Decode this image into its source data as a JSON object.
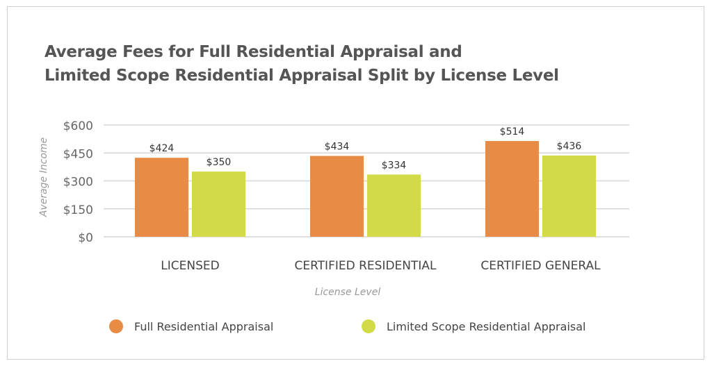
{
  "chart_data": {
    "type": "bar",
    "title": [
      "Average Fees for Full Residential Appraisal and",
      "Limited Scope Residential Appraisal Split by License Level"
    ],
    "xlabel": "License Level",
    "ylabel": "Average Income",
    "categories": [
      "LICENSED",
      "CERTIFIED RESIDENTIAL",
      "CERTIFIED GENERAL"
    ],
    "series": [
      {
        "name": "Full Residential Appraisal",
        "values": [
          424,
          434,
          514
        ],
        "labels": [
          "$424",
          "$434",
          "$514"
        ],
        "color": "#E88B45"
      },
      {
        "name": "Limited Scope Residential Appraisal",
        "values": [
          350,
          334,
          436
        ],
        "labels": [
          "$350",
          "$334",
          "$436"
        ],
        "color": "#D2DB47"
      }
    ],
    "ylim": [
      0,
      600
    ],
    "yticks": [
      0,
      150,
      300,
      450,
      600
    ],
    "ytick_labels": [
      "$0",
      "$150",
      "$300",
      "$450",
      "$600"
    ],
    "grid": true,
    "legend": "bottom"
  }
}
